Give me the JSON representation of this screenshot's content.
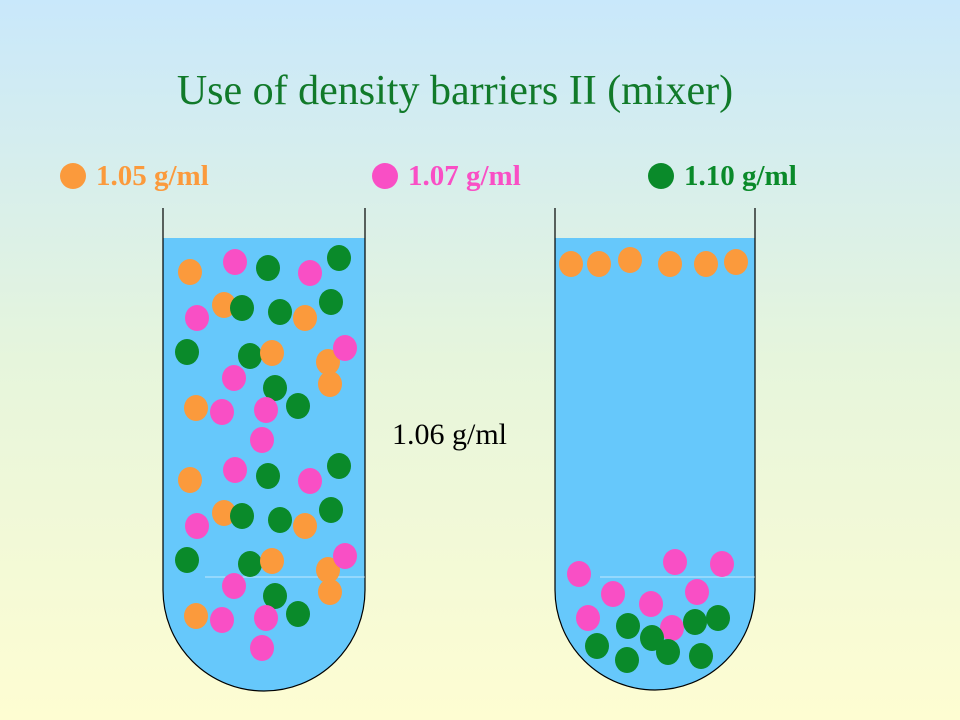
{
  "title": "Use of density barriers II (mixer)",
  "legend": [
    {
      "label": "1.05 g/ml",
      "color": "#fb9a3c",
      "dot_name": "orange-particle-icon"
    },
    {
      "label": "1.07 g/ml",
      "color": "#f94fc5",
      "dot_name": "pink-particle-icon"
    },
    {
      "label": "1.10 g/ml",
      "color": "#0a8a2a",
      "dot_name": "green-particle-icon"
    }
  ],
  "barrier_label": "1.06 g/ml",
  "colors": {
    "liquid": "#66c8fb",
    "orange": "#fb9a3c",
    "pink": "#f94fc5",
    "green": "#0a8a2a",
    "title": "#117a2a"
  }
}
